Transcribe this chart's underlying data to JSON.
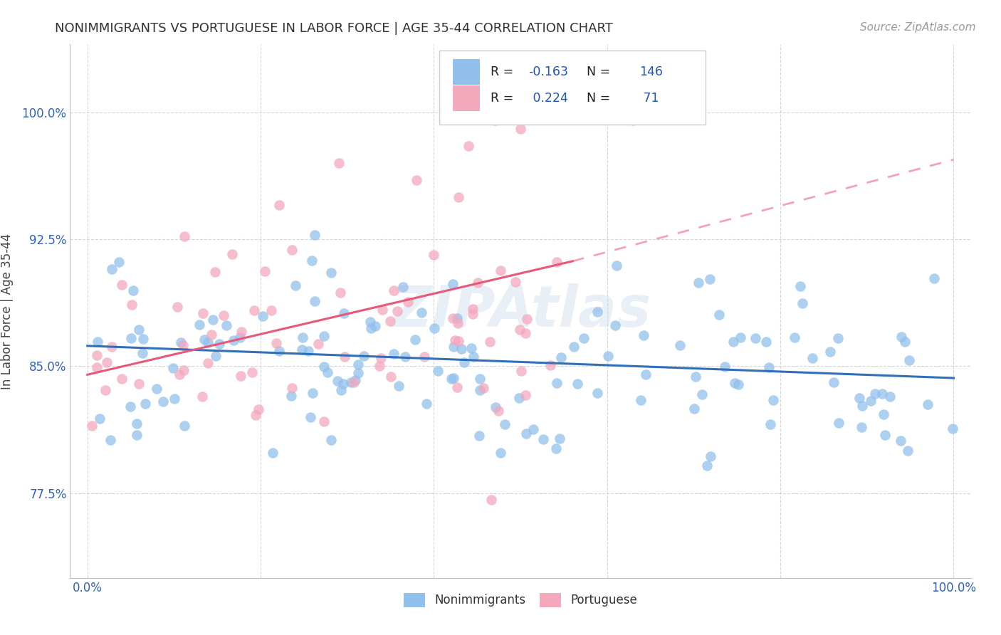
{
  "title": "NONIMMIGRANTS VS PORTUGUESE IN LABOR FORCE | AGE 35-44 CORRELATION CHART",
  "source": "Source: ZipAtlas.com",
  "ylabel": "In Labor Force | Age 35-44",
  "xlim": [
    -0.02,
    1.02
  ],
  "ylim": [
    0.725,
    1.04
  ],
  "yticks": [
    0.775,
    0.85,
    0.925,
    1.0
  ],
  "ytick_labels": [
    "77.5%",
    "85.0%",
    "92.5%",
    "100.0%"
  ],
  "xticks": [
    0.0,
    0.2,
    0.4,
    0.6,
    0.8,
    1.0
  ],
  "xtick_labels": [
    "0.0%",
    "",
    "",
    "",
    "",
    "100.0%"
  ],
  "nonimmigrants_color": "#92C0EC",
  "portuguese_color": "#F4A8BC",
  "nonimmigrants_line_color": "#3070B8",
  "portuguese_line_color": "#E85878",
  "R_nonimmigrants": -0.163,
  "N_nonimmigrants": 146,
  "R_portuguese": 0.224,
  "N_portuguese": 71,
  "legend_label_1": "Nonimmigrants",
  "legend_label_2": "Portuguese",
  "watermark_text": "ZIPAtlas",
  "title_fontsize": 13,
  "tick_fontsize": 12,
  "ylabel_fontsize": 12,
  "source_fontsize": 11,
  "scatter_size": 110,
  "scatter_alpha": 0.75,
  "ni_line_start_x": 0.0,
  "ni_line_end_x": 1.0,
  "ni_line_start_y": 0.862,
  "ni_line_end_y": 0.843,
  "pt_line_start_x": 0.0,
  "pt_line_end_x": 0.56,
  "pt_line_start_y": 0.845,
  "pt_line_end_y": 0.912,
  "pt_line_dash_end_x": 1.0,
  "pt_line_dash_end_y": 0.972
}
